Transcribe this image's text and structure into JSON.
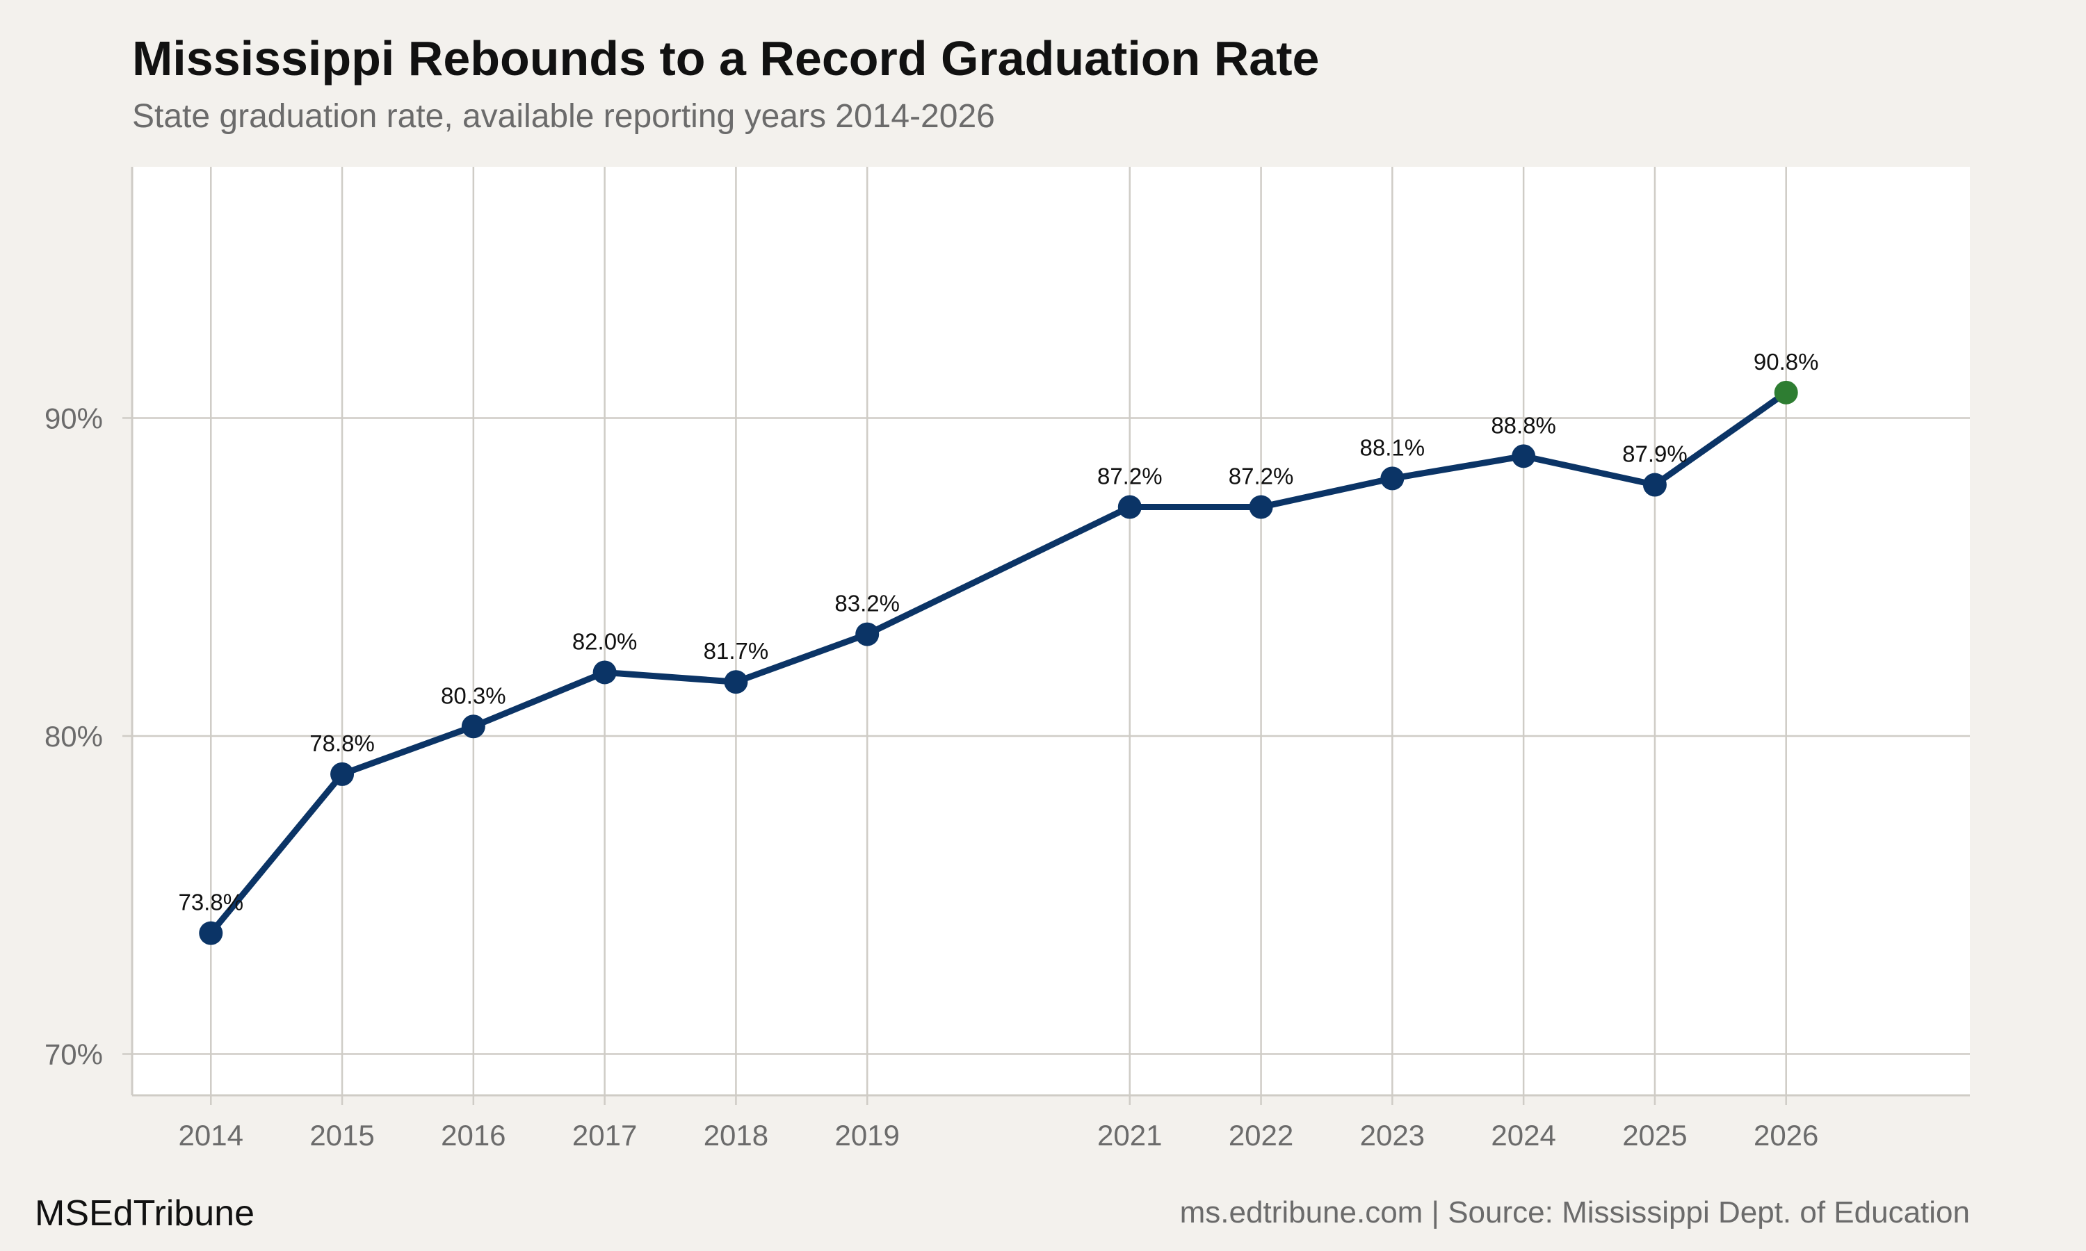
{
  "header": {
    "title": "Mississippi Rebounds to a Record Graduation Rate",
    "subtitle": "State graduation rate, available reporting years 2014-2026"
  },
  "footer": {
    "brand": "MSEdTribune",
    "source": "ms.edtribune.com | Source: Mississippi Dept. of Education"
  },
  "colors": {
    "line": "#0b3466",
    "highlight": "#2e7d32",
    "panel": "#ffffff",
    "background": "#f3f1ed",
    "grid": "#cfccc6"
  },
  "chart_data": {
    "type": "line",
    "x": [
      2014,
      2015,
      2016,
      2017,
      2018,
      2019,
      2021,
      2022,
      2023,
      2024,
      2025,
      2026
    ],
    "series": [
      {
        "values": [
          73.8,
          78.8,
          80.3,
          82.0,
          81.7,
          83.2,
          87.2,
          87.2,
          88.1,
          88.8,
          87.9,
          90.8
        ],
        "labels": [
          "73.8%",
          "78.8%",
          "80.3%",
          "82.0%",
          "81.7%",
          "83.2%",
          "87.2%",
          "87.2%",
          "88.1%",
          "88.8%",
          "87.9%",
          "90.8%"
        ]
      }
    ],
    "highlight_point": 2026,
    "x_ticks": [
      "2014",
      "2015",
      "2016",
      "2017",
      "2018",
      "2019",
      "2021",
      "2022",
      "2023",
      "2024",
      "2025",
      "2026"
    ],
    "y_ticks": [
      70,
      80,
      90
    ],
    "y_tick_labels": [
      "70%",
      "80%",
      "90%"
    ],
    "xlim": [
      2013.4,
      2027.4
    ],
    "ylim": [
      68.7,
      97.9
    ],
    "grid": true
  }
}
